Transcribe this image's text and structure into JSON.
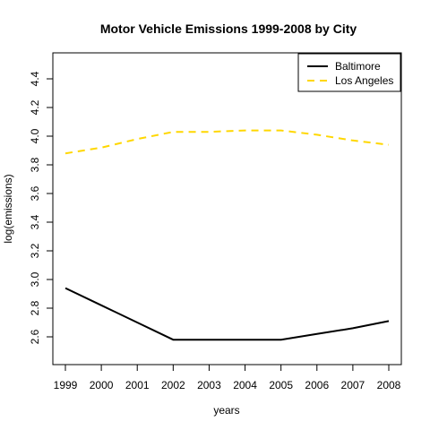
{
  "chart_data": {
    "type": "line",
    "title": "Motor Vehicle Emissions 1999-2008 by City",
    "xlabel": "years",
    "ylabel": "log(emissions)",
    "x": [
      1999,
      2000,
      2001,
      2002,
      2003,
      2004,
      2005,
      2006,
      2007,
      2008
    ],
    "x_ticks": [
      "1999",
      "2000",
      "2001",
      "2002",
      "2003",
      "2004",
      "2005",
      "2006",
      "2007",
      "2008"
    ],
    "y_ticks": [
      "2.6",
      "2.8",
      "3.0",
      "3.2",
      "3.4",
      "3.6",
      "3.8",
      "4.0",
      "4.2",
      "4.4"
    ],
    "xlim": [
      1999,
      2008
    ],
    "ylim": [
      2.6,
      4.4
    ],
    "grid": false,
    "legend_position": "top-right",
    "series": [
      {
        "name": "Baltimore",
        "color": "#000000",
        "style": "solid",
        "values": [
          2.94,
          2.82,
          2.7,
          2.58,
          2.58,
          2.58,
          2.58,
          2.62,
          2.66,
          2.71
        ]
      },
      {
        "name": "Los Angeles",
        "color": "#FFD700",
        "style": "dashed",
        "values": [
          3.88,
          3.92,
          3.98,
          4.03,
          4.03,
          4.04,
          4.04,
          4.01,
          3.97,
          3.94
        ]
      }
    ]
  }
}
